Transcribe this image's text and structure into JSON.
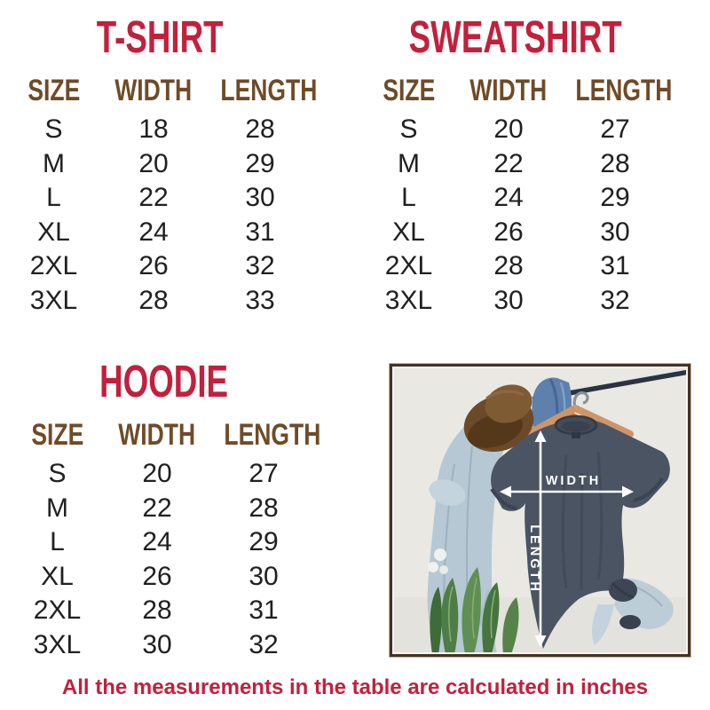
{
  "page": {
    "background": "#ffffff",
    "title_color": "#c2203c",
    "header_color": "#6f4b27",
    "value_color": "#202022",
    "photo_frame_color": "#42332a"
  },
  "tables": [
    {
      "title": "T-SHIRT",
      "headers": [
        "SIZE",
        "WIDTH",
        "LENGTH"
      ],
      "rows": [
        [
          "S",
          "18",
          "28"
        ],
        [
          "M",
          "20",
          "29"
        ],
        [
          "L",
          "22",
          "30"
        ],
        [
          "XL",
          "24",
          "31"
        ],
        [
          "2XL",
          "26",
          "32"
        ],
        [
          "3XL",
          "28",
          "33"
        ]
      ]
    },
    {
      "title": "SWEATSHIRT",
      "headers": [
        "SIZE",
        "WIDTH",
        "LENGTH"
      ],
      "rows": [
        [
          "S",
          "20",
          "27"
        ],
        [
          "M",
          "22",
          "28"
        ],
        [
          "L",
          "24",
          "29"
        ],
        [
          "XL",
          "26",
          "30"
        ],
        [
          "2XL",
          "28",
          "31"
        ],
        [
          "3XL",
          "30",
          "32"
        ]
      ]
    },
    {
      "title": "HOODIE",
      "headers": [
        "SIZE",
        "WIDTH",
        "LENGTH"
      ],
      "rows": [
        [
          "S",
          "20",
          "27"
        ],
        [
          "M",
          "22",
          "28"
        ],
        [
          "L",
          "24",
          "29"
        ],
        [
          "XL",
          "26",
          "30"
        ],
        [
          "2XL",
          "28",
          "31"
        ],
        [
          "3XL",
          "30",
          "32"
        ]
      ]
    }
  ],
  "photo": {
    "width_label": "WIDTH",
    "length_label": "LENGTH"
  },
  "footer": {
    "note": "All the measurements in the table are calculated in inches"
  }
}
